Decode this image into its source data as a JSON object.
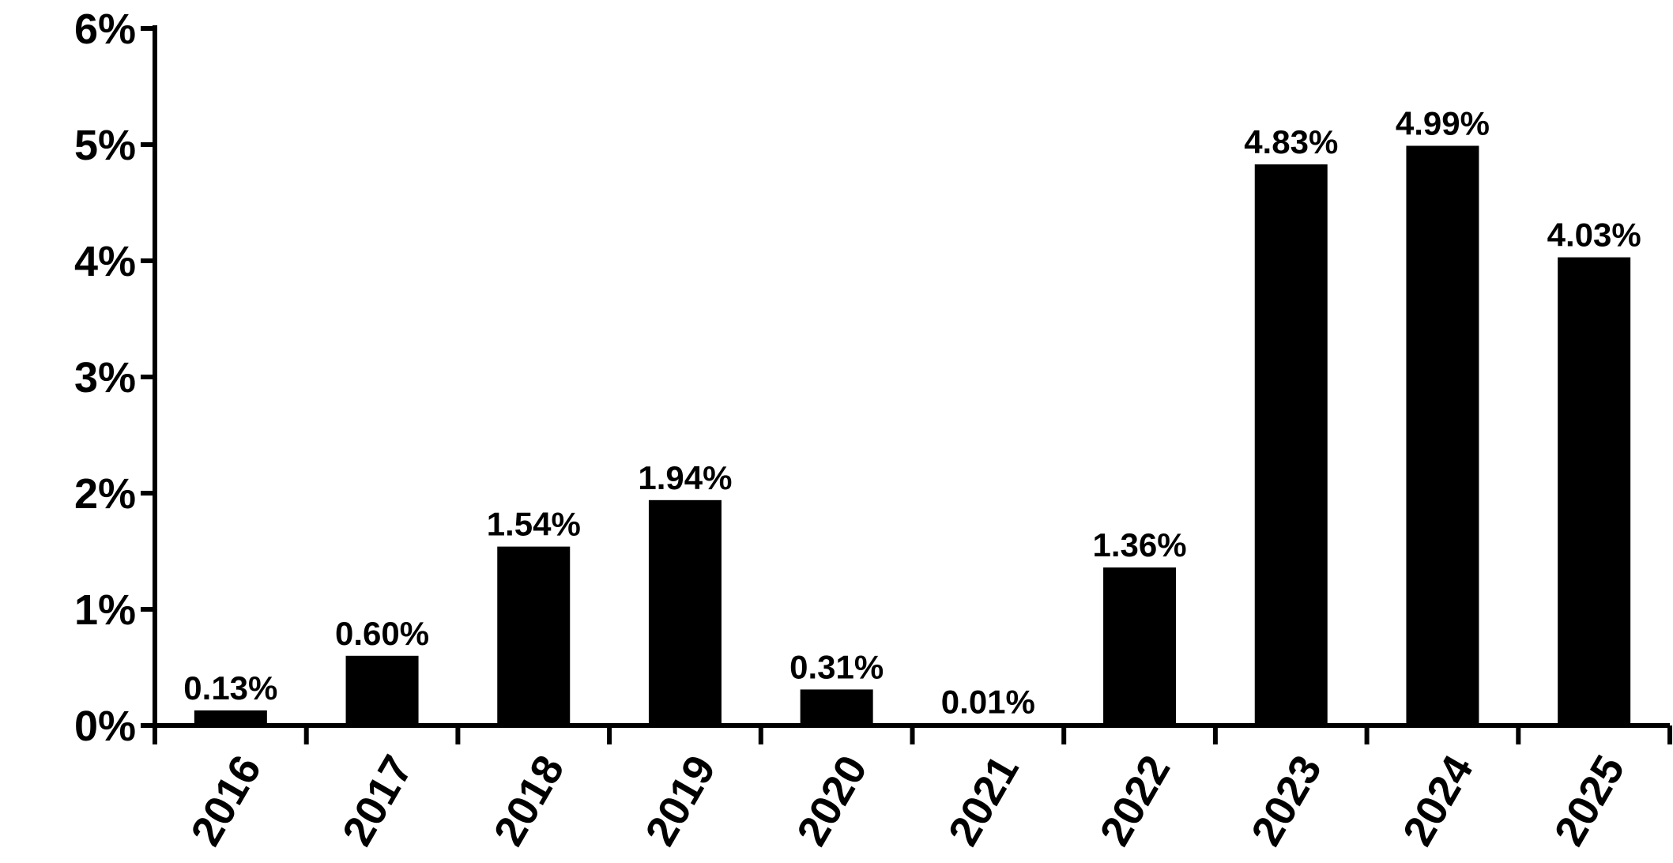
{
  "chart_data": {
    "type": "bar",
    "categories": [
      "2016",
      "2017",
      "2018",
      "2019",
      "2020",
      "2021",
      "2022",
      "2023",
      "2024",
      "2025"
    ],
    "values": [
      0.13,
      0.6,
      1.54,
      1.94,
      0.31,
      0.01,
      1.36,
      4.83,
      4.99,
      4.03
    ],
    "value_labels": [
      "0.13%",
      "0.60%",
      "1.54%",
      "1.94%",
      "0.31%",
      "0.01%",
      "1.36%",
      "4.83%",
      "4.99%",
      "4.03%"
    ],
    "color": "#000000",
    "ylim": [
      0,
      6
    ],
    "yticks": [
      {
        "value": 0,
        "label": "0%"
      },
      {
        "value": 1,
        "label": "1%"
      },
      {
        "value": 2,
        "label": "2%"
      },
      {
        "value": 3,
        "label": "3%"
      },
      {
        "value": 4,
        "label": "4%"
      },
      {
        "value": 5,
        "label": "5%"
      },
      {
        "value": 6,
        "label": "6%"
      }
    ],
    "grid": false
  }
}
